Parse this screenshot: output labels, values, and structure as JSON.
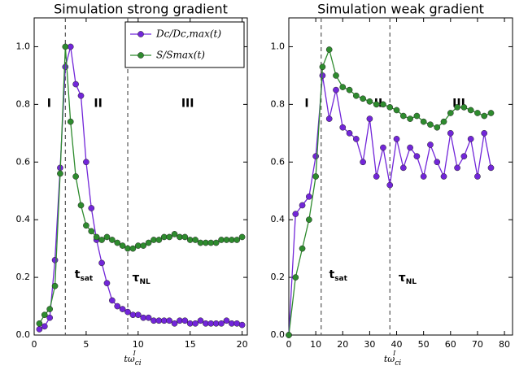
{
  "chart_data": [
    {
      "type": "line",
      "title": "Simulation strong gradient",
      "xlabel": {
        "main": "tω",
        "sub": "ci",
        "sup": "I"
      },
      "x": [
        0.5,
        1,
        1.5,
        2,
        2.5,
        3,
        3.5,
        4,
        4.5,
        5,
        5.5,
        6,
        6.5,
        7,
        7.5,
        8,
        8.5,
        9,
        9.5,
        10,
        10.5,
        11,
        11.5,
        12,
        12.5,
        13,
        13.5,
        14,
        14.5,
        15,
        15.5,
        16,
        16.5,
        17,
        17.5,
        18,
        18.5,
        19,
        19.5,
        20
      ],
      "series": [
        {
          "name": "Dc/Dc,max(t)",
          "color": "#7226d9",
          "values": [
            0.02,
            0.03,
            0.06,
            0.26,
            0.58,
            0.93,
            1.0,
            0.87,
            0.83,
            0.6,
            0.44,
            0.33,
            0.25,
            0.18,
            0.12,
            0.1,
            0.09,
            0.08,
            0.07,
            0.07,
            0.06,
            0.06,
            0.05,
            0.05,
            0.05,
            0.05,
            0.04,
            0.05,
            0.05,
            0.04,
            0.04,
            0.05,
            0.04,
            0.04,
            0.04,
            0.04,
            0.05,
            0.04,
            0.04,
            0.035
          ]
        },
        {
          "name": "S/Smax(t)",
          "color": "#2e8b2e",
          "values": [
            0.04,
            0.07,
            0.09,
            0.17,
            0.56,
            1.0,
            0.74,
            0.55,
            0.45,
            0.38,
            0.36,
            0.34,
            0.33,
            0.34,
            0.33,
            0.32,
            0.31,
            0.3,
            0.3,
            0.31,
            0.31,
            0.32,
            0.33,
            0.33,
            0.34,
            0.34,
            0.35,
            0.34,
            0.34,
            0.33,
            0.33,
            0.32,
            0.32,
            0.32,
            0.32,
            0.33,
            0.33,
            0.33,
            0.33,
            0.34
          ]
        }
      ],
      "xlim": [
        0,
        20.5
      ],
      "ylim": [
        0,
        1.1
      ],
      "xticks": [
        0,
        5,
        10,
        15,
        20
      ],
      "yticks": [
        {
          "value": 0,
          "label": "0.0"
        },
        0.2,
        0.4,
        0.6,
        0.8,
        {
          "value": 1,
          "label": "1.0"
        }
      ],
      "vlines": [
        3,
        9
      ],
      "annotations": [
        "I",
        "II",
        "III",
        {
          "main": "t",
          "sub": "sat"
        },
        {
          "main": "τ",
          "sub": "NL"
        }
      ],
      "legend": "upper right"
    },
    {
      "type": "line",
      "title": "Simulation weak gradient",
      "xlabel": {
        "main": "tω",
        "sub": "ci",
        "sup": "I"
      },
      "x": [
        0,
        2.5,
        5,
        7.5,
        10,
        12.5,
        15,
        17.5,
        20,
        22.5,
        25,
        27.5,
        30,
        32.5,
        35,
        37.5,
        40,
        42.5,
        45,
        47.5,
        50,
        52.5,
        55,
        57.5,
        60,
        62.5,
        65,
        67.5,
        70,
        72.5,
        75
      ],
      "series": [
        {
          "name": "Dc/Dc,max(t)",
          "color": "#7226d9",
          "values": [
            0,
            0.42,
            0.45,
            0.48,
            0.62,
            0.9,
            0.75,
            0.85,
            0.72,
            0.7,
            0.68,
            0.6,
            0.75,
            0.55,
            0.65,
            0.52,
            0.68,
            0.58,
            0.65,
            0.62,
            0.55,
            0.66,
            0.6,
            0.55,
            0.7,
            0.58,
            0.62,
            0.68,
            0.55,
            0.7,
            0.58
          ]
        },
        {
          "name": "S/Smax(t)",
          "color": "#2e8b2e",
          "values": [
            0,
            0.2,
            0.3,
            0.4,
            0.55,
            0.93,
            0.99,
            0.9,
            0.86,
            0.85,
            0.83,
            0.82,
            0.81,
            0.8,
            0.8,
            0.79,
            0.78,
            0.76,
            0.75,
            0.76,
            0.74,
            0.73,
            0.72,
            0.74,
            0.77,
            0.79,
            0.79,
            0.78,
            0.77,
            0.76,
            0.77
          ]
        }
      ],
      "xlim": [
        0,
        83
      ],
      "ylim": [
        0,
        1.1
      ],
      "xticks": [
        0,
        10,
        20,
        30,
        40,
        50,
        60,
        70,
        80
      ],
      "yticks": [
        {
          "value": 0,
          "label": "0.0"
        },
        0.2,
        0.4,
        0.6,
        0.8,
        {
          "value": 1,
          "label": "1.0"
        }
      ],
      "vlines": [
        12,
        37.5
      ],
      "annotations": [
        "I",
        "II",
        "III",
        {
          "main": "t",
          "sub": "sat"
        },
        {
          "main": "τ",
          "sub": "NL"
        }
      ]
    }
  ]
}
